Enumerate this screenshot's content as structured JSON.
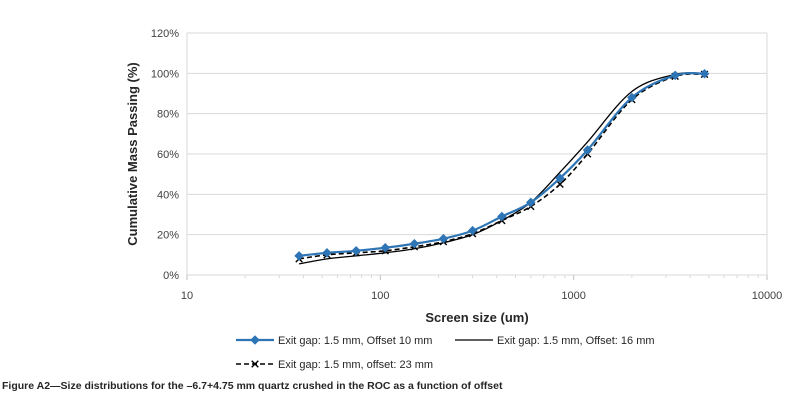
{
  "chart_data": {
    "type": "line",
    "xscale": "log",
    "xlim": [
      10,
      10000
    ],
    "ylim": [
      0,
      120
    ],
    "xlabel": "Screen size (um)",
    "ylabel": "Cumulative Mass Passing (%)",
    "x_ticks": [
      "10",
      "100",
      "1000",
      "10000"
    ],
    "y_ticks": [
      "0%",
      "20%",
      "40%",
      "60%",
      "80%",
      "100%",
      "120%"
    ],
    "grid": "horizontal",
    "legend_position": "bottom",
    "series": [
      {
        "name": "Exit gap: 1.5 mm, Offset 10 mm",
        "color": "#2e75b6",
        "marker": "diamond",
        "style": "solid",
        "x": [
          38,
          53,
          75,
          106,
          150,
          212,
          300,
          425,
          600,
          850,
          1180,
          2000,
          3350,
          4750
        ],
        "y": [
          9.5,
          11,
          12,
          13.5,
          15.5,
          18,
          22,
          29,
          36,
          48,
          62,
          88,
          99,
          99.8
        ]
      },
      {
        "name": "Exit gap: 1.5 mm, Offset: 16 mm",
        "color": "#000000",
        "marker": "none",
        "style": "solid",
        "x": [
          38,
          53,
          75,
          106,
          150,
          212,
          300,
          425,
          600,
          850,
          1180,
          2000,
          3350,
          4750
        ],
        "y": [
          5.5,
          8,
          9.5,
          11,
          13,
          16,
          20,
          27,
          36,
          51,
          66,
          91,
          99.5,
          100
        ]
      },
      {
        "name": "Exit gap: 1.5 mm, offset: 23 mm",
        "color": "#000000",
        "marker": "x",
        "style": "dashed",
        "x": [
          38,
          53,
          75,
          106,
          150,
          212,
          300,
          425,
          600,
          850,
          1180,
          2000,
          3350,
          4750
        ],
        "y": [
          8,
          10,
          11,
          12,
          14,
          16.5,
          20.5,
          27,
          34,
          45,
          60,
          87,
          98.5,
          99.5
        ]
      }
    ]
  },
  "caption": "Figure A2—Size distributions for the –6.7+4.75 mm quartz crushed in the ROC as a function of offset"
}
